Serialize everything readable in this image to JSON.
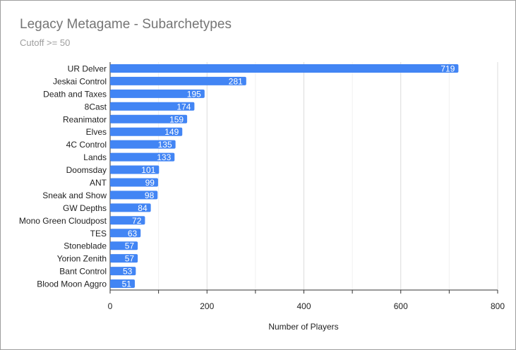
{
  "chart_data": {
    "type": "bar",
    "orientation": "horizontal",
    "title": "Legacy Metagame - Subarchetypes",
    "subtitle": "Cutoff >= 50",
    "xlabel": "Number of Players",
    "ylabel": "",
    "xlim": [
      0,
      800
    ],
    "xticks": [
      "0",
      "200",
      "400",
      "600",
      "800"
    ],
    "grid": true,
    "bar_color": "#4285f4",
    "categories": [
      "UR Delver",
      "Jeskai Control",
      "Death and Taxes",
      "8Cast",
      "Reanimator",
      "Elves",
      "4C Control",
      "Lands",
      "Doomsday",
      "ANT",
      "Sneak and Show",
      "GW Depths",
      "Mono Green Cloudpost",
      "TES",
      "Stoneblade",
      "Yorion Zenith",
      "Bant Control",
      "Blood Moon Aggro"
    ],
    "values": [
      719,
      281,
      195,
      174,
      159,
      149,
      135,
      133,
      101,
      99,
      98,
      84,
      72,
      63,
      57,
      57,
      53,
      51
    ]
  }
}
